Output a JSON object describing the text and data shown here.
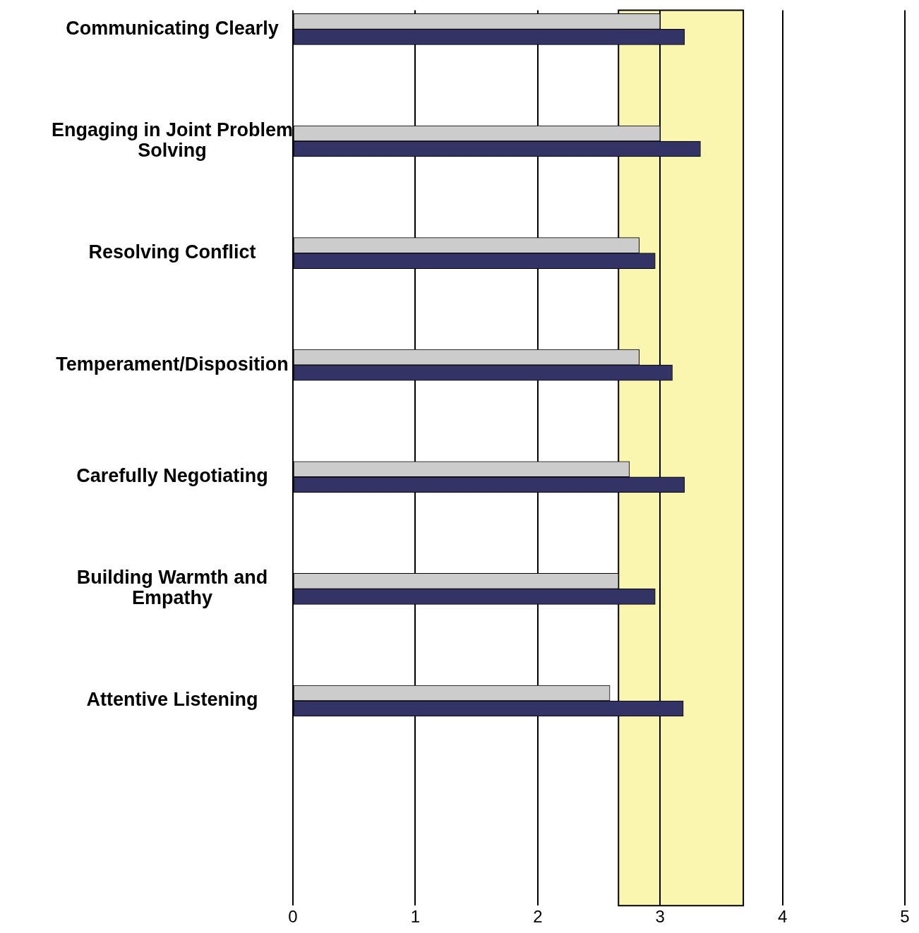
{
  "chart_data": {
    "type": "bar",
    "orientation": "horizontal",
    "categories": [
      "Communicating Clearly",
      "Engaging in Joint Problem Solving",
      "Resolving Conflict",
      "Temperament/Disposition",
      "Carefully Negotiating",
      "Building Warmth and Empathy",
      "Attentive Listening"
    ],
    "series": [
      {
        "color": "#cccccc",
        "values": [
          3.0,
          3.0,
          2.83,
          2.83,
          2.75,
          2.66,
          2.59
        ]
      },
      {
        "color": "#333366",
        "values": [
          3.2,
          3.33,
          2.96,
          3.1,
          3.2,
          2.96,
          3.19
        ]
      }
    ],
    "xlim": [
      0,
      5
    ],
    "xticks": [
      0,
      1,
      2,
      3,
      4,
      5
    ],
    "grid": "x",
    "legend": false,
    "bands": [
      {
        "axis": "x",
        "from": 2.66,
        "to": 3.68,
        "color": "#faf6b0"
      }
    ]
  }
}
